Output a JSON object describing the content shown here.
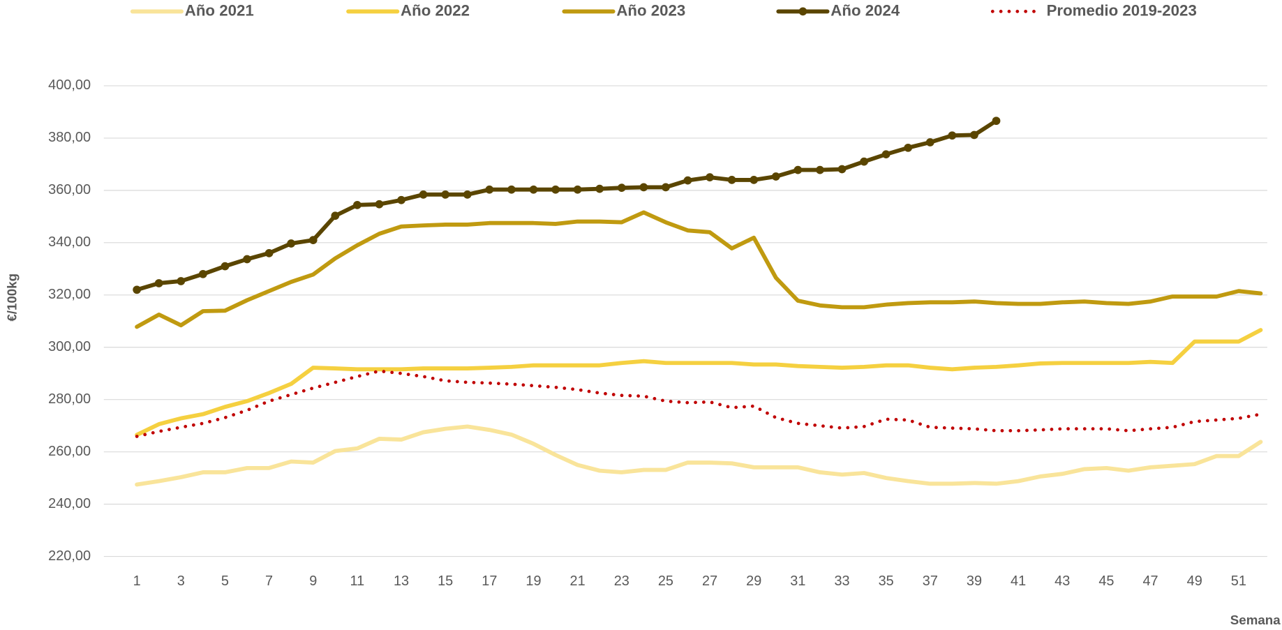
{
  "chart_data": {
    "type": "line",
    "x_label": "Semana",
    "y_label": "€/100kg",
    "legend": "top",
    "grid": true,
    "x": [
      1,
      2,
      3,
      4,
      5,
      6,
      7,
      8,
      9,
      10,
      11,
      12,
      13,
      14,
      15,
      16,
      17,
      18,
      19,
      20,
      21,
      22,
      23,
      24,
      25,
      26,
      27,
      28,
      29,
      30,
      31,
      32,
      33,
      34,
      35,
      36,
      37,
      38,
      39,
      40,
      41,
      42,
      43,
      44,
      45,
      46,
      47,
      48,
      49,
      50,
      51,
      52
    ],
    "xlim": [
      -0.5,
      52.3
    ],
    "xticks": [
      1,
      3,
      5,
      7,
      9,
      11,
      13,
      15,
      17,
      19,
      21,
      23,
      25,
      27,
      29,
      31,
      33,
      35,
      37,
      39,
      41,
      43,
      45,
      47,
      49,
      51
    ],
    "ylim": [
      220,
      400
    ],
    "yticks": [
      {
        "value": 220,
        "label": "220,00"
      },
      {
        "value": 240,
        "label": "240,00"
      },
      {
        "value": 260,
        "label": "260,00"
      },
      {
        "value": 280,
        "label": "280,00"
      },
      {
        "value": 300,
        "label": "300,00"
      },
      {
        "value": 320,
        "label": "320,00"
      },
      {
        "value": 340,
        "label": "340,00"
      },
      {
        "value": 360,
        "label": "360,00"
      },
      {
        "value": 380,
        "label": "380,00"
      },
      {
        "value": 400,
        "label": "400,00"
      }
    ],
    "series": [
      {
        "name": "Año 2021",
        "color": "#f9e49a",
        "style": "solid",
        "markers": false,
        "values": [
          247.5,
          248.8,
          250.3,
          252.2,
          252.2,
          253.8,
          253.8,
          256.3,
          255.9,
          260.3,
          261.3,
          265,
          264.7,
          267.5,
          268.8,
          269.7,
          268.4,
          266.6,
          263.1,
          258.8,
          255,
          252.8,
          252.2,
          253.1,
          253.1,
          255.9,
          255.9,
          255.6,
          254.1,
          254.1,
          254.1,
          252.2,
          251.3,
          251.9,
          250,
          248.8,
          247.8,
          247.8,
          248.1,
          247.8,
          248.8,
          250.6,
          251.6,
          253.4,
          253.8,
          252.8,
          254.1,
          254.7,
          255.3,
          258.4,
          258.4,
          263.8
        ]
      },
      {
        "name": "Año 2022",
        "color": "#f5d040",
        "style": "solid",
        "markers": false,
        "values": [
          266.5,
          270.6,
          272.8,
          274.4,
          277.2,
          279.4,
          282.5,
          286,
          292.2,
          291.9,
          291.6,
          291.6,
          291.6,
          291.9,
          291.9,
          291.9,
          292.2,
          292.5,
          293.1,
          293.1,
          293.1,
          293.1,
          294,
          294.7,
          294,
          294,
          294,
          294,
          293.4,
          293.4,
          292.8,
          292.5,
          292.2,
          292.5,
          293.1,
          293.1,
          292.2,
          291.6,
          292.2,
          292.5,
          293.1,
          293.8,
          294,
          294,
          294,
          294,
          294.4,
          294,
          302.2,
          302.2,
          302.2,
          306.6
        ]
      },
      {
        "name": "Año 2023",
        "color": "#c09a10",
        "style": "solid",
        "markers": false,
        "values": [
          307.8,
          312.5,
          308.4,
          313.8,
          314,
          318,
          321.5,
          325,
          327.8,
          334,
          339,
          343.4,
          346.2,
          346.6,
          346.9,
          346.9,
          347.5,
          347.5,
          347.5,
          347.2,
          348.1,
          348.1,
          347.8,
          351.6,
          347.8,
          344.7,
          344,
          337.8,
          341.9,
          326.6,
          317.8,
          316,
          315.3,
          315.3,
          316.3,
          316.9,
          317.2,
          317.2,
          317.5,
          316.9,
          316.6,
          316.6,
          317.2,
          317.5,
          316.9,
          316.6,
          317.5,
          319.4,
          319.4,
          319.4,
          321.5,
          320.6
        ]
      },
      {
        "name": "Año 2024",
        "color": "#5a4500",
        "style": "solid",
        "markers": true,
        "values": [
          322,
          324.5,
          325.3,
          328,
          331,
          333.7,
          336,
          339.7,
          341,
          350.3,
          354.4,
          354.7,
          356.3,
          358.4,
          358.4,
          358.4,
          360.3,
          360.3,
          360.3,
          360.3,
          360.3,
          360.6,
          361,
          361.2,
          361.2,
          363.8,
          365,
          364,
          364,
          365.3,
          367.8,
          367.8,
          368.1,
          371,
          373.8,
          376.3,
          378.4,
          381,
          381.2,
          386.6,
          null,
          null,
          null,
          null,
          null,
          null,
          null,
          null,
          null,
          null,
          null,
          null
        ]
      },
      {
        "name": "Promedio 2019-2023",
        "color": "#c00000",
        "style": "dotted",
        "markers": false,
        "values": [
          265.9,
          267.8,
          269.4,
          270.9,
          273.1,
          275.9,
          279.4,
          281.9,
          284.4,
          286.6,
          288.8,
          290.9,
          290,
          288.8,
          287.2,
          286.6,
          286.3,
          285.9,
          285.3,
          284.7,
          283.8,
          282.5,
          281.6,
          281.3,
          279.4,
          278.8,
          279.1,
          276.9,
          277.5,
          273.1,
          270.9,
          270,
          269.1,
          269.7,
          272.5,
          272.2,
          269.4,
          269.1,
          268.8,
          268.1,
          268.1,
          268.4,
          268.8,
          268.8,
          268.8,
          268.1,
          268.8,
          269.4,
          271.6,
          272.2,
          272.8,
          274.4
        ]
      }
    ]
  }
}
